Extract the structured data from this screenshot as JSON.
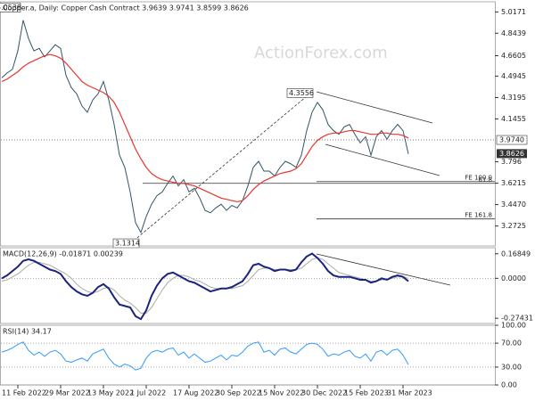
{
  "watermark": "ActionForex.com",
  "chart_data": [
    {
      "type": "line",
      "title": "Copper.a, Daily:  Copper Cash Contract  3.9639 3.9741 3.8599 3.8626",
      "categories": [
        null,
        null,
        null,
        "11 Feb 2022",
        null,
        null,
        null,
        null,
        null,
        null,
        null,
        "29 Mar 2022",
        null,
        null,
        null,
        null,
        null,
        null,
        null,
        "13 May 2022",
        null,
        null,
        null,
        null,
        null,
        null,
        null,
        "1 Jul 2022",
        null,
        null,
        null,
        null,
        null,
        null,
        null,
        "17 Aug 2022",
        null,
        null,
        null,
        null,
        null,
        null,
        null,
        "30 Sep 2022",
        null,
        null,
        null,
        null,
        null,
        null,
        null,
        "15 Nov 2022",
        null,
        null,
        null,
        null,
        null,
        null,
        null,
        "30 Dec 2022",
        null,
        null,
        null,
        null,
        null,
        null,
        null,
        "15 Feb 2023",
        null,
        null,
        null,
        null,
        null,
        null,
        null,
        "31 Mar 2023",
        null
      ],
      "ylim": [
        3.11,
        5.1
      ],
      "yticks": [
        5.0171,
        4.8439,
        4.6605,
        4.4945,
        4.3195,
        4.1455,
        3.796,
        3.6215,
        {
          "value": 3.447,
          "label": "3.4470"
        },
        3.2725
      ],
      "price_line": {
        "value": 3.974,
        "label": "3.9740"
      },
      "last_price": {
        "value": 3.8626,
        "label": "3.8626"
      },
      "annotations": [
        5.0538,
        4.3556,
        3.1314
      ],
      "fib_levels": [
        {
          "value": 3.635,
          "label": "FE 100.0"
        },
        {
          "value": 3.62,
          "label": "61.8"
        },
        {
          "value": 3.33,
          "label": "FE 161.8"
        }
      ],
      "series": [
        {
          "color": "#2f5566",
          "values": [
            4.48,
            4.52,
            4.55,
            4.7,
            4.95,
            4.8,
            4.7,
            4.72,
            4.65,
            4.7,
            4.75,
            4.72,
            4.5,
            4.4,
            4.35,
            4.25,
            4.2,
            4.3,
            4.35,
            4.45,
            4.3,
            4.1,
            3.85,
            3.75,
            3.55,
            3.3,
            3.22,
            3.35,
            3.45,
            3.52,
            3.55,
            3.62,
            3.68,
            3.6,
            3.65,
            3.55,
            3.58,
            3.5,
            3.4,
            3.38,
            3.42,
            3.45,
            3.4,
            3.44,
            3.42,
            3.48,
            3.6,
            3.75,
            3.8,
            3.72,
            3.72,
            3.68,
            3.75,
            3.8,
            3.78,
            3.75,
            3.85,
            4.05,
            4.2,
            4.28,
            4.22,
            4.1,
            4.05,
            4.02,
            4.08,
            4.1,
            4.02,
            3.95,
            4.0,
            3.85,
            4.0,
            4.05,
            3.98,
            4.05,
            4.1,
            4.05,
            3.86
          ]
        },
        {
          "color": "#e8352e",
          "values": [
            4.45,
            4.47,
            4.5,
            4.53,
            4.57,
            4.6,
            4.62,
            4.64,
            4.66,
            4.67,
            4.66,
            4.64,
            4.6,
            4.55,
            4.5,
            4.45,
            4.42,
            4.4,
            4.38,
            4.36,
            4.33,
            4.28,
            4.2,
            4.1,
            4.0,
            3.9,
            3.82,
            3.75,
            3.7,
            3.67,
            3.65,
            3.64,
            3.63,
            3.62,
            3.62,
            3.61,
            3.6,
            3.58,
            3.56,
            3.54,
            3.52,
            3.5,
            3.49,
            3.48,
            3.47,
            3.48,
            3.52,
            3.57,
            3.61,
            3.64,
            3.66,
            3.68,
            3.7,
            3.71,
            3.72,
            3.74,
            3.78,
            3.85,
            3.92,
            3.97,
            4.0,
            4.02,
            4.03,
            4.03,
            4.04,
            4.05,
            4.05,
            4.04,
            4.03,
            4.02,
            4.02,
            4.03,
            4.03,
            4.02,
            4.02,
            4.01,
            3.99
          ]
        }
      ]
    },
    {
      "type": "line",
      "title": "MACD(12,26,9) -0.01871 0.00239",
      "ylim": [
        -0.31,
        0.21
      ],
      "yticks": [
        0.16849,
        {
          "value": 0,
          "label": "0.0000"
        },
        -0.27431
      ],
      "grid": "dotted",
      "series": [
        {
          "color": "#aaaaaa",
          "values": [
            -0.02,
            -0.01,
            0.01,
            0.03,
            0.06,
            0.09,
            0.11,
            0.11,
            0.1,
            0.09,
            0.07,
            0.05,
            0.03,
            0.0,
            -0.04,
            -0.07,
            -0.09,
            -0.1,
            -0.09,
            -0.07,
            -0.06,
            -0.08,
            -0.12,
            -0.15,
            -0.17,
            -0.2,
            -0.24,
            -0.24,
            -0.2,
            -0.14,
            -0.08,
            -0.03,
            0.0,
            0.02,
            0.02,
            0.01,
            -0.01,
            -0.02,
            -0.04,
            -0.06,
            -0.07,
            -0.07,
            -0.07,
            -0.07,
            -0.06,
            -0.05,
            -0.02,
            0.02,
            0.06,
            0.07,
            0.07,
            0.06,
            0.06,
            0.06,
            0.06,
            0.06,
            0.07,
            0.1,
            0.13,
            0.14,
            0.13,
            0.1,
            0.07,
            0.04,
            0.03,
            0.02,
            0.01,
            0.0,
            -0.01,
            -0.02,
            -0.02,
            -0.01,
            -0.01,
            0.0,
            0.01,
            0.01,
            0.0
          ]
        },
        {
          "color": "#1a237e",
          "values": [
            0.0,
            0.02,
            0.05,
            0.08,
            0.12,
            0.13,
            0.12,
            0.1,
            0.08,
            0.06,
            0.05,
            0.03,
            -0.02,
            -0.06,
            -0.09,
            -0.11,
            -0.12,
            -0.1,
            -0.06,
            -0.04,
            -0.07,
            -0.13,
            -0.18,
            -0.19,
            -0.2,
            -0.26,
            -0.28,
            -0.22,
            -0.12,
            -0.05,
            0.0,
            0.03,
            0.04,
            0.02,
            0.0,
            -0.02,
            -0.03,
            -0.05,
            -0.07,
            -0.09,
            -0.08,
            -0.07,
            -0.07,
            -0.06,
            -0.04,
            -0.02,
            0.03,
            0.09,
            0.1,
            0.08,
            0.07,
            0.05,
            0.06,
            0.06,
            0.05,
            0.06,
            0.11,
            0.15,
            0.17,
            0.14,
            0.1,
            0.05,
            0.02,
            0.01,
            0.01,
            0.01,
            0.0,
            -0.01,
            -0.01,
            -0.03,
            -0.02,
            0.0,
            -0.01,
            0.01,
            0.02,
            0.01,
            -0.02
          ]
        }
      ]
    },
    {
      "type": "line",
      "title": "RSI(14) 34.17",
      "ylim": [
        0,
        100
      ],
      "yticks": [
        {
          "value": 100,
          "label": "100.00"
        },
        {
          "value": 70,
          "label": "70.00"
        },
        {
          "value": 30,
          "label": "30.00"
        },
        {
          "value": 0,
          "label": "0.00"
        }
      ],
      "grid": "dotted",
      "series": [
        {
          "color": "#3399ff",
          "values": [
            55,
            58,
            62,
            68,
            72,
            58,
            50,
            55,
            48,
            55,
            58,
            52,
            40,
            38,
            42,
            45,
            40,
            52,
            56,
            60,
            45,
            35,
            30,
            35,
            32,
            25,
            28,
            45,
            55,
            58,
            55,
            60,
            62,
            50,
            55,
            45,
            52,
            45,
            38,
            40,
            45,
            50,
            42,
            50,
            48,
            55,
            65,
            70,
            72,
            55,
            58,
            50,
            60,
            62,
            55,
            52,
            60,
            68,
            70,
            68,
            60,
            48,
            52,
            50,
            55,
            58,
            48,
            45,
            52,
            40,
            55,
            58,
            50,
            58,
            60,
            50,
            34
          ]
        }
      ]
    }
  ]
}
